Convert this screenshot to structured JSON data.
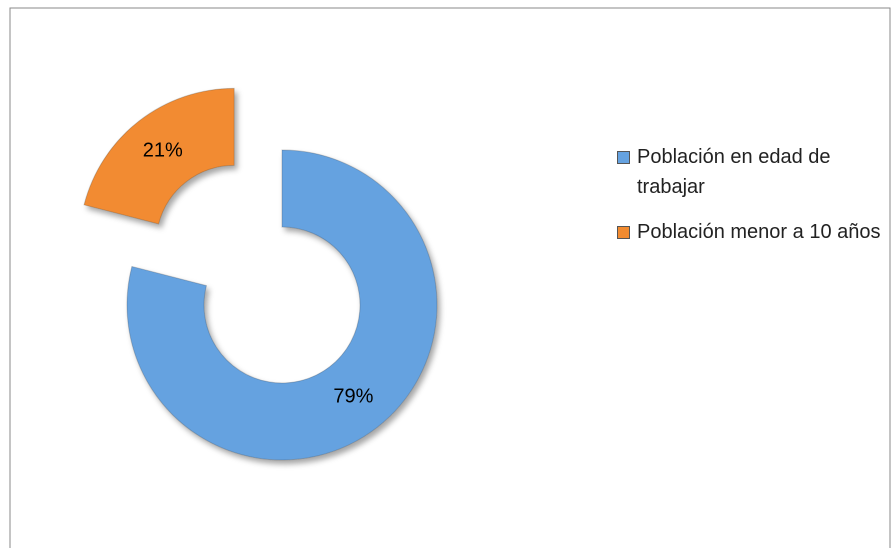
{
  "chart_data": {
    "type": "doughnut",
    "categories": [
      "Población en edad de trabajar",
      "Población menor a 10 años"
    ],
    "values": [
      79,
      21
    ],
    "value_labels": [
      "79%",
      "21%"
    ],
    "colors": [
      "#65a2e0",
      "#f28b30"
    ],
    "legend": "right"
  }
}
